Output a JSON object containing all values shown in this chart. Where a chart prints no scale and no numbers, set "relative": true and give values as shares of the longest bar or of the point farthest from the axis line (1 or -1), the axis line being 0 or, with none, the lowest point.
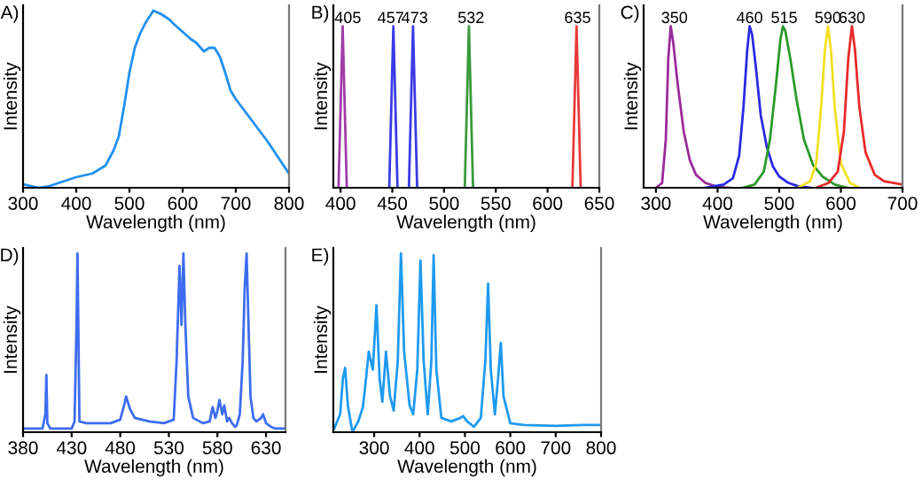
{
  "chart_data": [
    {
      "type": "line",
      "title": "A)",
      "xlabel": "Wavelength (nm)",
      "ylabel": "Intensity",
      "relative": true,
      "tick_labels": "x",
      "xlim": [
        300,
        800
      ],
      "xticks": [
        300,
        400,
        500,
        600,
        700,
        800
      ],
      "series": [
        {
          "color": "#2090f0",
          "x": [
            300,
            330,
            350,
            400,
            430,
            455,
            470,
            480,
            490,
            500,
            510,
            520,
            530,
            545,
            560,
            575,
            585,
            600,
            615,
            625,
            640,
            650,
            660,
            670,
            680,
            690,
            700,
            720,
            740,
            760,
            780,
            800
          ],
          "values": [
            0.02,
            0.0,
            0.01,
            0.06,
            0.08,
            0.125,
            0.21,
            0.29,
            0.46,
            0.65,
            0.79,
            0.87,
            0.93,
            1.0,
            0.98,
            0.95,
            0.92,
            0.88,
            0.84,
            0.82,
            0.77,
            0.79,
            0.79,
            0.74,
            0.65,
            0.55,
            0.5,
            0.42,
            0.34,
            0.26,
            0.17,
            0.08
          ]
        }
      ]
    },
    {
      "type": "line",
      "title": "B)",
      "xlabel": "Wavelength (nm)",
      "ylabel": "Intensity",
      "relative": true,
      "tick_labels": "x",
      "xlim": [
        393,
        650
      ],
      "xticks": [
        400,
        450,
        500,
        550,
        600,
        650
      ],
      "series": [
        {
          "color": "#a03ca8",
          "x": [
            398,
            402,
            406
          ],
          "values": [
            0,
            1,
            0
          ]
        },
        {
          "color": "#3a3ae6",
          "x": [
            447,
            451,
            455
          ],
          "values": [
            0,
            1,
            0
          ]
        },
        {
          "color": "#3a3ae6",
          "x": [
            466,
            470,
            474
          ],
          "values": [
            0,
            1,
            0
          ]
        },
        {
          "color": "#3a9a3a",
          "x": [
            520,
            524,
            528
          ],
          "values": [
            0,
            1,
            0
          ]
        },
        {
          "color": "#e83a3a",
          "x": [
            624,
            628,
            632
          ],
          "values": [
            0,
            1,
            0
          ]
        }
      ],
      "annotations": [
        {
          "text": "405",
          "x": 407,
          "y": 1
        },
        {
          "text": "457",
          "x": 449,
          "y": 1
        },
        {
          "text": "473",
          "x": 471,
          "y": 1
        },
        {
          "text": "532",
          "x": 526,
          "y": 1
        },
        {
          "text": "635",
          "x": 629,
          "y": 1
        }
      ]
    },
    {
      "type": "line",
      "title": "C)",
      "xlabel": "Wavelength (nm)",
      "ylabel": "Intensity",
      "relative": true,
      "tick_labels": "x",
      "xlim": [
        280,
        700
      ],
      "xticks": [
        300,
        400,
        500,
        600,
        700
      ],
      "series": [
        {
          "color": "#9a2a9a",
          "x": [
            300,
            310,
            316,
            320,
            324,
            328,
            335,
            345,
            355,
            365,
            380,
            400,
            420
          ],
          "values": [
            0,
            0.03,
            0.3,
            0.8,
            1.0,
            0.9,
            0.65,
            0.35,
            0.17,
            0.08,
            0.03,
            0.005,
            0
          ]
        },
        {
          "color": "#2a2ae0",
          "x": [
            380,
            410,
            425,
            435,
            442,
            448,
            452,
            456,
            462,
            470,
            480,
            490,
            500,
            515,
            530,
            550
          ],
          "values": [
            0,
            0.02,
            0.06,
            0.2,
            0.5,
            0.85,
            1.0,
            0.95,
            0.75,
            0.45,
            0.25,
            0.13,
            0.07,
            0.03,
            0.01,
            0
          ]
        },
        {
          "color": "#2a9a2a",
          "x": [
            440,
            460,
            475,
            485,
            495,
            502,
            506,
            510,
            518,
            528,
            540,
            555,
            570,
            590,
            610
          ],
          "values": [
            0,
            0.02,
            0.1,
            0.3,
            0.65,
            0.92,
            1.0,
            0.97,
            0.8,
            0.55,
            0.3,
            0.14,
            0.07,
            0.02,
            0
          ]
        },
        {
          "color": "#f0e020",
          "x": [
            530,
            550,
            560,
            568,
            574,
            579,
            584,
            590,
            600,
            615,
            630
          ],
          "values": [
            0,
            0.04,
            0.15,
            0.5,
            0.85,
            1.0,
            0.85,
            0.5,
            0.15,
            0.03,
            0
          ]
        },
        {
          "color": "#e82a2a",
          "x": [
            560,
            580,
            595,
            605,
            612,
            618,
            623,
            630,
            640,
            655,
            670,
            700
          ],
          "values": [
            0,
            0.03,
            0.1,
            0.35,
            0.8,
            1.0,
            0.85,
            0.5,
            0.22,
            0.08,
            0.04,
            0.02
          ]
        }
      ],
      "annotations": [
        {
          "text": "350",
          "x": 330,
          "y": 1
        },
        {
          "text": "460",
          "x": 452,
          "y": 1
        },
        {
          "text": "515",
          "x": 508,
          "y": 1
        },
        {
          "text": "590",
          "x": 579,
          "y": 1
        },
        {
          "text": "630",
          "x": 618,
          "y": 1
        }
      ]
    },
    {
      "type": "line",
      "title": "D)",
      "xlabel": "Wavelength (nm)",
      "ylabel": "Intensity",
      "relative": true,
      "tick_labels": "x",
      "xlim": [
        380,
        650
      ],
      "xticks": [
        380,
        430,
        480,
        530,
        580,
        630
      ],
      "series": [
        {
          "color": "#3d6cf0",
          "x": [
            380,
            400,
            403,
            404,
            405,
            408,
            430,
            433,
            435,
            436,
            438,
            445,
            470,
            480,
            484,
            486,
            490,
            495,
            510,
            525,
            535,
            538,
            541,
            543,
            545,
            547,
            550,
            555,
            565,
            572,
            575,
            578,
            580,
            582,
            585,
            587,
            590,
            592,
            595,
            598,
            600,
            603,
            606,
            608,
            610,
            612,
            614,
            617,
            620,
            625,
            627,
            630,
            635,
            640,
            650
          ],
          "values": [
            0.02,
            0.02,
            0.1,
            0.32,
            0.05,
            0.02,
            0.02,
            0.06,
            0.6,
            1.0,
            0.06,
            0.05,
            0.05,
            0.07,
            0.15,
            0.2,
            0.13,
            0.08,
            0.06,
            0.05,
            0.07,
            0.4,
            0.93,
            0.6,
            1.0,
            0.6,
            0.2,
            0.08,
            0.05,
            0.06,
            0.14,
            0.08,
            0.12,
            0.18,
            0.1,
            0.15,
            0.06,
            0.08,
            0.05,
            0.03,
            0.04,
            0.1,
            0.4,
            0.8,
            1.0,
            0.6,
            0.2,
            0.08,
            0.06,
            0.08,
            0.1,
            0.05,
            0.03,
            0.02,
            0.02
          ]
        }
      ]
    },
    {
      "type": "line",
      "title": "E)",
      "xlabel": "Wavelength (nm)",
      "ylabel": "Intensity",
      "relative": true,
      "tick_labels": "x",
      "xlim": [
        210,
        800
      ],
      "xticks": [
        300,
        400,
        500,
        600,
        700,
        800
      ],
      "series": [
        {
          "color": "#1e9af0",
          "x": [
            212,
            225,
            231,
            236,
            242,
            252,
            265,
            275,
            280,
            288,
            297,
            305,
            312,
            318,
            326,
            335,
            343,
            352,
            359,
            366,
            378,
            386,
            395,
            402,
            409,
            418,
            426,
            431,
            437,
            448,
            470,
            490,
            496,
            505,
            520,
            535,
            545,
            551,
            557,
            566,
            573,
            579,
            585,
            600,
            630,
            700,
            760,
            800
          ],
          "values": [
            0.02,
            0.1,
            0.3,
            0.36,
            0.15,
            0.0,
            0.06,
            0.14,
            0.25,
            0.45,
            0.35,
            0.71,
            0.3,
            0.17,
            0.45,
            0.2,
            0.12,
            0.4,
            1.0,
            0.45,
            0.15,
            0.1,
            0.35,
            0.96,
            0.4,
            0.1,
            0.4,
            0.99,
            0.35,
            0.08,
            0.06,
            0.08,
            0.09,
            0.06,
            0.03,
            0.08,
            0.4,
            0.83,
            0.35,
            0.1,
            0.3,
            0.5,
            0.2,
            0.05,
            0.04,
            0.035,
            0.04,
            0.04
          ]
        }
      ]
    }
  ]
}
